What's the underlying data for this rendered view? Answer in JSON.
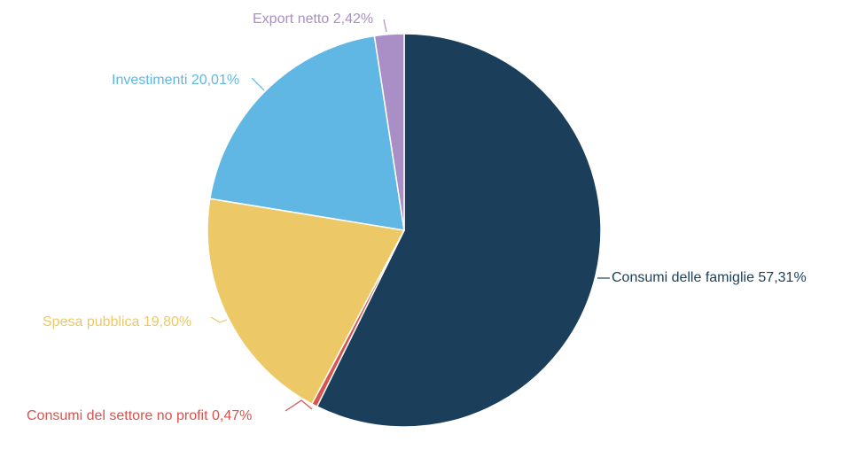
{
  "chart_data": {
    "type": "pie",
    "title": "",
    "start_angle_deg": 0,
    "direction": "clockwise",
    "slices": [
      {
        "label": "Consumi delle famiglie",
        "value": 57.31,
        "display": "57,31%",
        "color": "#1b3f5a"
      },
      {
        "label": "Consumi del settore no profit",
        "value": 0.47,
        "display": "0,47%",
        "color": "#d9534f"
      },
      {
        "label": "Spesa pubblica",
        "value": 19.8,
        "display": "19,80%",
        "color": "#ecc966"
      },
      {
        "label": "Investimenti",
        "value": 20.01,
        "display": "20,01%",
        "color": "#60b7e4"
      },
      {
        "label": "Export netto",
        "value": 2.42,
        "display": "2,42%",
        "color": "#aa8fc7"
      }
    ]
  }
}
